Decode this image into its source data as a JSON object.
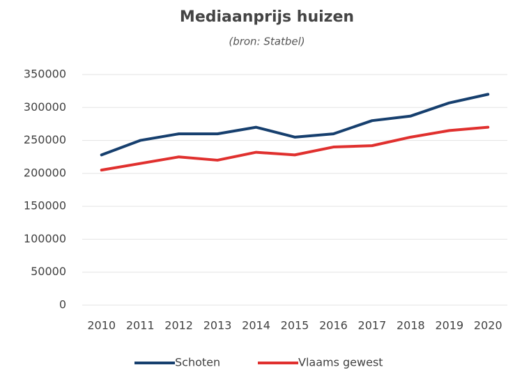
{
  "chart_data": {
    "type": "line",
    "title": "Mediaanprijs huizen",
    "subtitle": "(bron: Statbel)",
    "categories": [
      "2010",
      "2011",
      "2012",
      "2013",
      "2014",
      "2015",
      "2016",
      "2017",
      "2018",
      "2019",
      "2020"
    ],
    "series": [
      {
        "name": "Schoten",
        "color": "#163f6e",
        "values": [
          228000,
          250000,
          260000,
          260000,
          270000,
          255000,
          260000,
          280000,
          287000,
          307000,
          320000
        ]
      },
      {
        "name": "Vlaams gewest",
        "color": "#e0302e",
        "values": [
          205000,
          215000,
          225000,
          220000,
          232000,
          228000,
          240000,
          242000,
          255000,
          265000,
          270000
        ]
      }
    ],
    "ylim": [
      0,
      350000
    ],
    "yticks": [
      0,
      50000,
      100000,
      150000,
      200000,
      250000,
      300000,
      350000
    ],
    "grid": true,
    "legend": "bottom"
  }
}
